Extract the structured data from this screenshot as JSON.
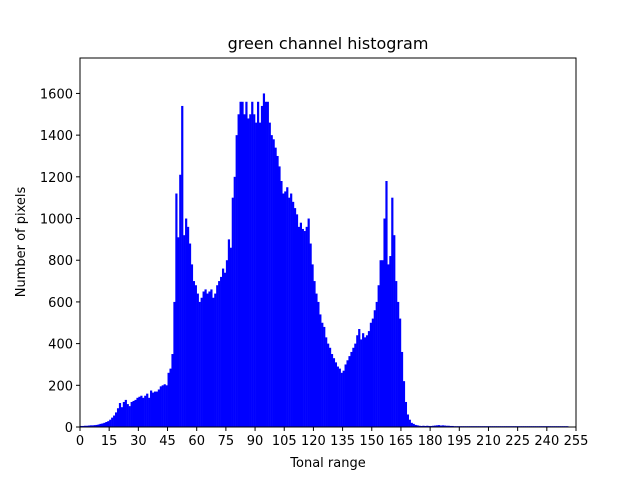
{
  "chart_data": {
    "type": "bar",
    "title": "green channel histogram",
    "xlabel": "Tonal range",
    "ylabel": "Number of pixels",
    "xlim": [
      0,
      255
    ],
    "ylim": [
      0,
      1770
    ],
    "xticks": [
      0,
      15,
      30,
      45,
      60,
      75,
      90,
      105,
      120,
      135,
      150,
      165,
      180,
      195,
      210,
      225,
      240,
      255
    ],
    "yticks": [
      0,
      200,
      400,
      600,
      800,
      1000,
      1200,
      1400,
      1600
    ],
    "bar_color": "#0000ff",
    "grid": false,
    "x_start": 0,
    "values": [
      5,
      5,
      6,
      6,
      7,
      8,
      8,
      9,
      10,
      12,
      15,
      17,
      20,
      24,
      28,
      35,
      45,
      55,
      70,
      90,
      115,
      95,
      120,
      130,
      110,
      100,
      120,
      125,
      130,
      140,
      145,
      150,
      140,
      150,
      160,
      140,
      175,
      165,
      170,
      170,
      180,
      195,
      200,
      205,
      200,
      260,
      280,
      350,
      600,
      1120,
      910,
      1210,
      1540,
      920,
      1000,
      960,
      880,
      780,
      700,
      680,
      640,
      600,
      620,
      650,
      660,
      640,
      650,
      660,
      620,
      640,
      680,
      700,
      720,
      760,
      740,
      800,
      900,
      860,
      1100,
      1200,
      1400,
      1500,
      1560,
      1560,
      1500,
      1560,
      1480,
      1500,
      1560,
      1500,
      1460,
      1560,
      1460,
      1540,
      1600,
      1560,
      1560,
      1460,
      1400,
      1380,
      1340,
      1300,
      1250,
      1180,
      1120,
      1130,
      1150,
      1100,
      1120,
      1080,
      1050,
      1020,
      960,
      980,
      950,
      940,
      960,
      1000,
      880,
      780,
      700,
      640,
      600,
      540,
      500,
      480,
      430,
      400,
      380,
      350,
      330,
      310,
      290,
      280,
      260,
      270,
      300,
      320,
      340,
      360,
      380,
      400,
      440,
      470,
      420,
      450,
      430,
      440,
      460,
      500,
      520,
      560,
      600,
      680,
      800,
      800,
      1000,
      1180,
      780,
      820,
      1100,
      920,
      700,
      600,
      520,
      360,
      220,
      120,
      60,
      35,
      20,
      15,
      10,
      8,
      6,
      5,
      6,
      5,
      6,
      5,
      5,
      6,
      7,
      8,
      9,
      7,
      8,
      7,
      6,
      6,
      5,
      5,
      4,
      4,
      4,
      4,
      4,
      4,
      4,
      4,
      4,
      4,
      4,
      4,
      4,
      4,
      4,
      4,
      4,
      4,
      4,
      4,
      4,
      4,
      4,
      4,
      4,
      4,
      4,
      4,
      4,
      4,
      4,
      4,
      4,
      4,
      4,
      4,
      4,
      4,
      4,
      4,
      4,
      4,
      4,
      4,
      4,
      4,
      4,
      4,
      4,
      4,
      4,
      4,
      4,
      4,
      4,
      4,
      4,
      4,
      4
    ]
  }
}
